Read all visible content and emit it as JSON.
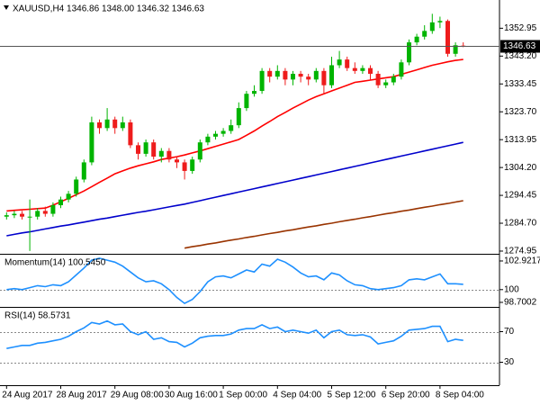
{
  "chart_data": [
    {
      "type": "candlestick",
      "title": "XAUUSD,H4  1346.86 1348.00 1346.32 1346.63",
      "categories": [
        "24 Aug 2017",
        null,
        null,
        null,
        null,
        null,
        null,
        "28 Aug 2017",
        null,
        null,
        null,
        null,
        null,
        null,
        "29 Aug 08:00",
        null,
        null,
        null,
        null,
        null,
        null,
        "30 Aug 16:00",
        null,
        null,
        null,
        null,
        null,
        null,
        "1 Sep 00:00",
        null,
        null,
        null,
        null,
        null,
        null,
        "4 Sep 04:00",
        null,
        null,
        null,
        null,
        null,
        null,
        "5 Sep 12:00",
        null,
        null,
        null,
        null,
        null,
        null,
        "6 Sep 20:00",
        null,
        null,
        null,
        null,
        null,
        null,
        "8 Sep 04:00",
        null,
        null,
        null
      ],
      "open": [
        1287,
        1287.5,
        1288,
        1287,
        1287,
        1289,
        1288,
        1291,
        1293,
        1295,
        1300,
        1306,
        1320,
        1318,
        1321,
        1318,
        1320,
        1312,
        1309,
        1313,
        1308,
        1310,
        1307,
        1306,
        1303,
        1307,
        1313,
        1315,
        1316,
        1317,
        1319,
        1325,
        1330,
        1331,
        1338,
        1336,
        1338,
        1335,
        1337,
        1336,
        1335,
        1338,
        1333,
        1340,
        1342,
        1339,
        1338,
        1339,
        1337,
        1333,
        1334,
        1336,
        1341,
        1348,
        1350,
        1352,
        1355,
        1355.5,
        1344,
        1346.86
      ],
      "high": [
        1288.5,
        1289,
        1289,
        1293,
        1290,
        1290.5,
        1292,
        1294,
        1296,
        1301,
        1307,
        1322,
        1321,
        1325,
        1322,
        1322,
        1321,
        1313,
        1314,
        1314,
        1311,
        1311,
        1308,
        1307,
        1308,
        1314,
        1316,
        1317,
        1318,
        1321,
        1327,
        1331,
        1333,
        1339,
        1339,
        1340,
        1339,
        1338,
        1338,
        1337,
        1339,
        1339,
        1343,
        1345,
        1343,
        1341,
        1340,
        1340,
        1338,
        1335,
        1337,
        1342,
        1349,
        1351,
        1354,
        1358,
        1357,
        1356,
        1348,
        1348
      ],
      "low": [
        1286,
        1286.5,
        1286,
        1275,
        1286,
        1287,
        1287,
        1290,
        1292,
        1294,
        1299,
        1305,
        1316,
        1317,
        1316,
        1317,
        1311,
        1307,
        1308,
        1307,
        1306,
        1306,
        1304,
        1300,
        1302,
        1306,
        1312,
        1314,
        1315,
        1316,
        1318,
        1324,
        1329,
        1330,
        1334,
        1335,
        1333,
        1333,
        1334,
        1333,
        1334,
        1330,
        1332,
        1339,
        1338,
        1337,
        1337,
        1335,
        1332,
        1332,
        1333,
        1335,
        1340,
        1347,
        1349,
        1351,
        1353,
        1343,
        1343,
        1346.32
      ],
      "close": [
        1287.5,
        1288,
        1287,
        1287,
        1289,
        1288,
        1291,
        1293,
        1295,
        1300,
        1306,
        1320,
        1318,
        1321,
        1318,
        1320,
        1312,
        1309,
        1313,
        1308,
        1310,
        1307,
        1306,
        1303,
        1307,
        1313,
        1315,
        1316,
        1317,
        1319,
        1325,
        1330,
        1331,
        1338,
        1336,
        1338,
        1335,
        1337,
        1336,
        1335,
        1338,
        1333,
        1340,
        1342,
        1339,
        1338,
        1339,
        1337,
        1333,
        1334,
        1336,
        1341,
        1348,
        1350,
        1352,
        1355,
        1355.5,
        1344,
        1347,
        1346.63
      ],
      "up_color": "#00b400",
      "down_color": "#ee1c1c",
      "series": [
        {
          "color": "#ff0000",
          "values": [
            1289,
            1289.2,
            1289.4,
            1289.6,
            1289.8,
            1290,
            1291,
            1292.2,
            1293.4,
            1294.7,
            1296,
            1297.5,
            1299,
            1300.5,
            1302,
            1303,
            1304,
            1304.8,
            1305.5,
            1306.2,
            1307,
            1307.5,
            1308,
            1308.6,
            1309.3,
            1310,
            1310.8,
            1311.6,
            1312.4,
            1313.2,
            1314,
            1315.5,
            1317,
            1318.7,
            1320.3,
            1322,
            1323.5,
            1325,
            1326.4,
            1327.8,
            1329,
            1330,
            1331,
            1332,
            1333,
            1334,
            1334.4,
            1334.8,
            1335.2,
            1335.6,
            1336,
            1336.8,
            1337.6,
            1338.4,
            1339.2,
            1340,
            1340.6,
            1341.2,
            1341.7,
            1342
          ]
        },
        {
          "color": "#0000cc",
          "values": [
            1280.3,
            1280.8,
            1281.3,
            1281.7,
            1282.2,
            1282.7,
            1283.2,
            1283.7,
            1284.1,
            1284.6,
            1285.1,
            1285.6,
            1286.1,
            1286.5,
            1287,
            1287.5,
            1288,
            1288.5,
            1288.9,
            1289.4,
            1289.9,
            1290.4,
            1290.9,
            1291.4,
            1292,
            1292.6,
            1293.2,
            1293.8,
            1294.4,
            1295,
            1295.6,
            1296.2,
            1296.8,
            1297.4,
            1298,
            1298.6,
            1299.2,
            1299.8,
            1300.4,
            1301,
            1301.6,
            1302.2,
            1302.8,
            1303.4,
            1304,
            1304.6,
            1305.2,
            1305.8,
            1306.4,
            1307,
            1307.6,
            1308.2,
            1308.8,
            1309.4,
            1310,
            1310.6,
            1311.2,
            1311.8,
            1312.4,
            1313
          ]
        },
        {
          "color": "#993300",
          "values": [
            null,
            null,
            null,
            null,
            null,
            null,
            null,
            null,
            null,
            null,
            null,
            null,
            null,
            null,
            null,
            null,
            null,
            null,
            null,
            null,
            null,
            null,
            null,
            1276,
            1276.5,
            1276.9,
            1277.4,
            1277.8,
            1278.3,
            1278.8,
            1279.2,
            1279.7,
            1280.1,
            1280.6,
            1281.1,
            1281.5,
            1282,
            1282.4,
            1282.9,
            1283.4,
            1283.8,
            1284.3,
            1284.7,
            1285.2,
            1285.7,
            1286.1,
            1286.6,
            1287,
            1287.5,
            1288,
            1288.4,
            1288.9,
            1289.3,
            1289.8,
            1290.3,
            1290.7,
            1291.2,
            1291.6,
            1292.1,
            1292.6
          ]
        }
      ],
      "last_price": 1346.63,
      "ylim": [
        1274,
        1362.2
      ],
      "yticks": [
        1352.95,
        {
          "value": 1343.2,
          "label": "1343.20"
        },
        1333.45,
        {
          "value": 1323.7,
          "label": "1323.70"
        },
        1313.95,
        {
          "value": 1304.2,
          "label": "1304.20"
        },
        1294.45,
        {
          "value": 1284.7,
          "label": "1284.70"
        },
        1274.95
      ]
    },
    {
      "type": "line",
      "title": "Momentum(14) 100.5450",
      "color": "#1e90ff",
      "values": [
        100,
        100.1,
        100,
        100.2,
        100.4,
        100.3,
        100.5,
        100.4,
        100.8,
        101.5,
        102.2,
        103,
        103.2,
        103,
        102.8,
        102.4,
        101.8,
        101.2,
        100.8,
        100.9,
        100.6,
        100,
        99.2,
        98.6,
        99,
        99.8,
        100.8,
        101.3,
        101.4,
        101.2,
        101.6,
        102,
        101.8,
        102.6,
        102.4,
        103.1,
        102.8,
        102.3,
        101.7,
        101.3,
        101.4,
        101,
        101.7,
        101.5,
        100.9,
        100.5,
        100.4,
        100.1,
        100,
        100.1,
        100.2,
        100.4,
        101,
        101.1,
        101,
        101.3,
        101.6,
        100.6,
        100.6,
        100.545
      ],
      "ylim": [
        98.33,
        103.47
      ],
      "yticks": [
        102.9217,
        100,
        98.7002
      ],
      "levels": [
        100
      ]
    },
    {
      "type": "line",
      "title": "RSI(14) 58.5731",
      "color": "#1e90ff",
      "values": [
        48,
        50,
        52,
        52,
        55,
        56,
        58,
        60,
        64,
        70,
        75,
        82,
        80,
        84,
        79,
        80,
        70,
        66,
        70,
        60,
        62,
        57,
        56,
        50,
        55,
        62,
        64,
        65,
        65,
        67,
        72,
        74,
        74,
        79,
        74,
        76,
        70,
        72,
        70,
        68,
        72,
        62,
        70,
        72,
        66,
        65,
        66,
        63,
        54,
        56,
        58,
        64,
        72,
        73,
        74,
        77,
        77,
        57,
        60,
        58.5731
      ],
      "ylim": [
        0,
        100
      ],
      "yticks": [
        70,
        30
      ],
      "levels": [
        70,
        30
      ]
    }
  ]
}
